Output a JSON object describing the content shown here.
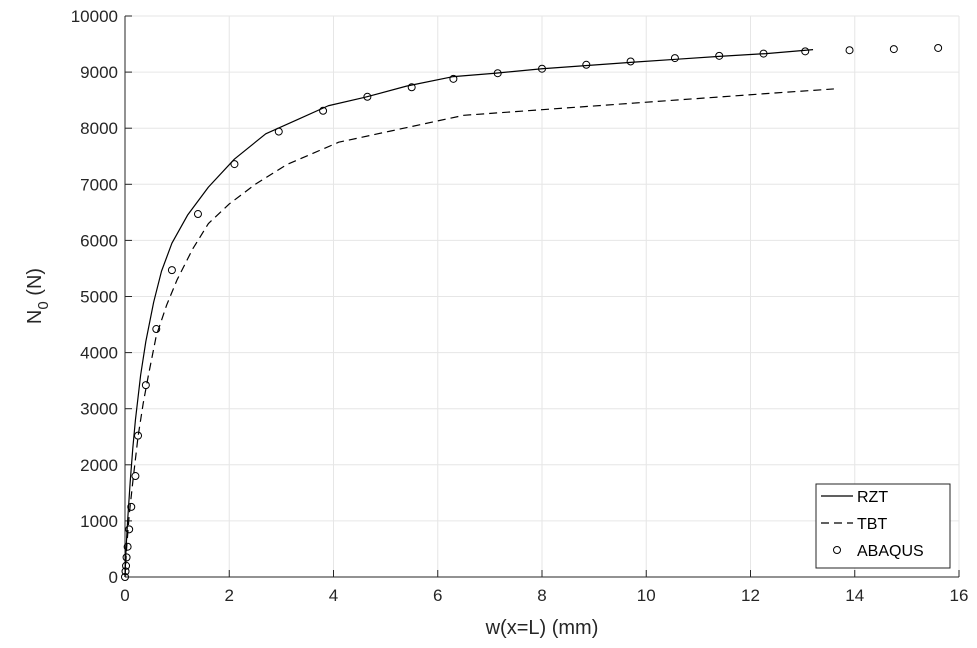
{
  "chart_data": {
    "type": "line",
    "title": "",
    "xlabel": "w(x=L) (mm)",
    "ylabel_main": "N",
    "ylabel_sub": "0",
    "ylabel_unit": "(N)",
    "xlim": [
      0,
      16
    ],
    "ylim": [
      0,
      10000
    ],
    "xticks": [
      0,
      2,
      4,
      6,
      8,
      10,
      12,
      14,
      16
    ],
    "yticks": [
      0,
      1000,
      2000,
      3000,
      4000,
      5000,
      6000,
      7000,
      8000,
      9000,
      10000
    ],
    "grid": true,
    "legend_location": "bottom-right",
    "series": [
      {
        "name": "RZT",
        "style": "solid",
        "color": "#000000",
        "x": [
          0,
          0.02,
          0.05,
          0.1,
          0.15,
          0.2,
          0.3,
          0.4,
          0.55,
          0.7,
          0.9,
          1.2,
          1.6,
          2.1,
          2.7,
          3.3,
          3.9,
          4.6,
          5.4,
          6.3,
          7.1,
          8.0,
          8.9,
          9.8,
          10.6,
          11.4,
          12.3,
          13.2
        ],
        "y": [
          0,
          500,
          1000,
          1700,
          2300,
          2800,
          3600,
          4200,
          4900,
          5450,
          5950,
          6450,
          6950,
          7450,
          7900,
          8150,
          8400,
          8550,
          8750,
          8920,
          8980,
          9060,
          9120,
          9180,
          9230,
          9280,
          9330,
          9400
        ]
      },
      {
        "name": "TBT",
        "style": "dashed",
        "color": "#000000",
        "x": [
          0,
          0.03,
          0.08,
          0.15,
          0.25,
          0.35,
          0.45,
          0.6,
          0.8,
          1.0,
          1.3,
          1.6,
          2.0,
          2.5,
          3.1,
          4.1,
          5.1,
          6.5,
          8.0,
          9.5,
          11.0,
          12.5,
          13.6
        ],
        "y": [
          0,
          500,
          1100,
          1700,
          2500,
          3100,
          3600,
          4300,
          4850,
          5300,
          5850,
          6300,
          6650,
          7000,
          7350,
          7750,
          7950,
          8230,
          8330,
          8430,
          8530,
          8630,
          8700
        ]
      },
      {
        "name": "ABAQUS",
        "style": "markers",
        "color": "#000000",
        "x": [
          0.0,
          0.01,
          0.02,
          0.03,
          0.05,
          0.08,
          0.12,
          0.2,
          0.25,
          0.4,
          0.6,
          0.9,
          1.4,
          2.1,
          2.95,
          3.8,
          4.65,
          5.5,
          6.3,
          7.15,
          8.0,
          8.85,
          9.7,
          10.55,
          11.4,
          12.25,
          13.05,
          13.9,
          14.75,
          15.6
        ],
        "y": [
          0,
          100,
          200,
          350,
          540,
          850,
          1250,
          1800,
          2520,
          3420,
          4420,
          5470,
          6470,
          7360,
          7940,
          8310,
          8560,
          8730,
          8880,
          8980,
          9060,
          9130,
          9190,
          9250,
          9290,
          9330,
          9370,
          9390,
          9410,
          9430
        ]
      }
    ]
  }
}
